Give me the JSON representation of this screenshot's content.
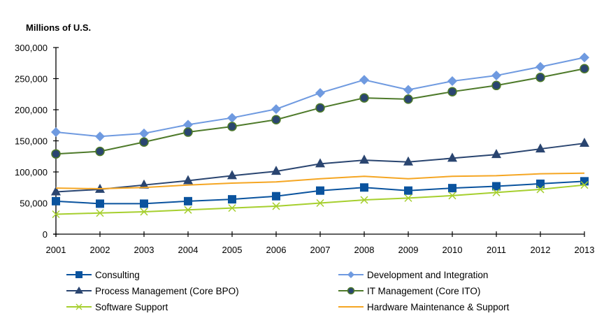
{
  "chart_data": {
    "type": "line",
    "title": "",
    "ylabel": "Millions of U.S.",
    "xlabel": "",
    "x": [
      "2001",
      "2002",
      "2003",
      "2004",
      "2005",
      "2006",
      "2007",
      "2008",
      "2009",
      "2010",
      "2011",
      "2012",
      "2013"
    ],
    "ylim": [
      0,
      300000
    ],
    "yticks": [
      0,
      50000,
      100000,
      150000,
      200000,
      250000,
      300000
    ],
    "ytick_labels": [
      "0",
      "50,000",
      "100,000",
      "150,000",
      "200,000",
      "250,000",
      "300,000"
    ],
    "grid": false,
    "legend_position": "bottom",
    "series": [
      {
        "name": "Consulting",
        "color": "#0a539e",
        "marker": "square",
        "values": [
          53000,
          49000,
          49000,
          53000,
          56000,
          61000,
          70000,
          75000,
          70000,
          74000,
          77000,
          81000,
          85000
        ]
      },
      {
        "name": "Development and Integration",
        "color": "#6f9ae0",
        "marker": "diamond",
        "values": [
          164000,
          157000,
          162000,
          176000,
          187000,
          201000,
          227000,
          248000,
          232000,
          246000,
          255000,
          269000,
          284000
        ]
      },
      {
        "name": "Process Management (Core BPO)",
        "color": "#2a4570",
        "marker": "triangle",
        "values": [
          68000,
          72000,
          79000,
          86000,
          94000,
          101000,
          113000,
          119000,
          116000,
          122000,
          128000,
          137000,
          146000
        ]
      },
      {
        "name": "IT Management (Core ITO)",
        "color": "#4e7a2a",
        "marker": "circle",
        "marker_fill": "#2a4570",
        "values": [
          129000,
          133000,
          148000,
          164000,
          173000,
          184000,
          203000,
          219000,
          217000,
          229000,
          239000,
          252000,
          266000
        ]
      },
      {
        "name": "Software Support",
        "color": "#a6cf2e",
        "marker": "x",
        "values": [
          32000,
          34000,
          36000,
          39000,
          42000,
          45000,
          50000,
          55000,
          58000,
          62000,
          67000,
          72000,
          79000
        ]
      },
      {
        "name": "Hardware Maintenance & Support",
        "color": "#f5a623",
        "marker": "none",
        "values": [
          74000,
          73000,
          75000,
          79000,
          82000,
          84000,
          89000,
          93000,
          89000,
          93000,
          94000,
          97000,
          98000
        ]
      }
    ]
  }
}
